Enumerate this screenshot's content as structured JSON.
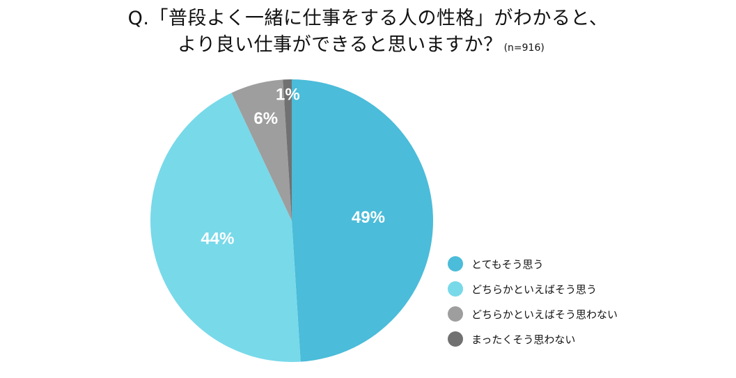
{
  "title": {
    "line1": "Q.「普段よく一緒に仕事をする人の性格」がわかると、",
    "line2": "より良い仕事ができると思いますか？",
    "note": "(n=916)"
  },
  "chart_data": {
    "type": "pie",
    "title": "Q.「普段よく一緒に仕事をする人の性格」がわかると、より良い仕事ができると思いますか？",
    "sample_size": "(n=916)",
    "start_angle": "12 o'clock",
    "direction": "clockwise",
    "legend_position": "right-bottom",
    "slices": [
      {
        "label": "とてもそう思う",
        "value": 49,
        "display": "49%",
        "color": "#4BBCD9"
      },
      {
        "label": "どちらかといえばそう思う",
        "value": 44,
        "display": "44%",
        "color": "#78D9E9"
      },
      {
        "label": "どちらかといえばそう思わない",
        "value": 6,
        "display": "6%",
        "color": "#9E9E9E"
      },
      {
        "label": "まったくそう思わない",
        "value": 1,
        "display": "1%",
        "color": "#717171"
      }
    ]
  }
}
